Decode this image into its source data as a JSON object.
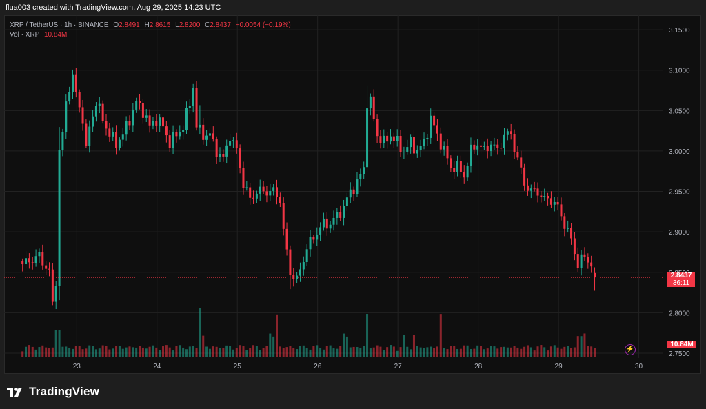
{
  "header": {
    "attribution": "flua003 created with TradingView.com, Aug 29, 2025 14:23 UTC"
  },
  "legend": {
    "symbol": "XRP / TetherUS · 1h · BINANCE",
    "open_label": "O",
    "open": "2.8491",
    "high_label": "H",
    "high": "2.8615",
    "low_label": "L",
    "low": "2.8200",
    "close_label": "C",
    "close": "2.8437",
    "change": "−0.0054 (−0.19%)",
    "volume_label": "Vol · XRP",
    "volume": "10.84M"
  },
  "price_tag": {
    "price": "2.8437",
    "countdown": "36:11"
  },
  "volume_tag": "10.84M",
  "footer": {
    "brand": "TradingView"
  },
  "colors": {
    "up": "#22ab94",
    "down": "#f23645",
    "background": "#0f0f0f",
    "grid": "#222222"
  },
  "chart_data": {
    "type": "candlestick",
    "symbol": "XRP / TetherUS",
    "interval": "1h",
    "exchange": "BINANCE",
    "y_ticks": [
      2.75,
      2.8,
      2.85,
      2.9,
      2.95,
      3.0,
      3.05,
      3.1,
      3.15
    ],
    "y_tick_labels": [
      "2.7500",
      "2.8000",
      "2.8500",
      "2.9000",
      "2.9500",
      "3.0000",
      "3.0500",
      "3.1000",
      "3.1500"
    ],
    "ylim": [
      2.744,
      3.168
    ],
    "x_tick_labels": [
      "23",
      "24",
      "25",
      "26",
      "27",
      "28",
      "29",
      "30"
    ],
    "x_tick_positions": [
      16.2,
      40.2,
      64.2,
      88.2,
      112.2,
      136.2,
      160.2,
      184.2
    ],
    "x_range": [
      -5.5,
      191.5
    ],
    "last_price": 2.8437,
    "close_anchors": [
      [
        0,
        2.86
      ],
      [
        5,
        2.87
      ],
      [
        8,
        2.85
      ],
      [
        9,
        2.81
      ],
      [
        10,
        2.84
      ],
      [
        11,
        3.0
      ],
      [
        12,
        3.02
      ],
      [
        13,
        3.06
      ],
      [
        14,
        3.08
      ],
      [
        15,
        3.09
      ],
      [
        16,
        3.07
      ],
      [
        18,
        3.04
      ],
      [
        19,
        3.0
      ],
      [
        20,
        3.03
      ],
      [
        22,
        3.06
      ],
      [
        24,
        3.04
      ],
      [
        26,
        3.02
      ],
      [
        28,
        3.01
      ],
      [
        30,
        3.02
      ],
      [
        32,
        3.04
      ],
      [
        34,
        3.06
      ],
      [
        36,
        3.05
      ],
      [
        38,
        3.03
      ],
      [
        40,
        3.04
      ],
      [
        42,
        3.03
      ],
      [
        44,
        3.01
      ],
      [
        46,
        3.02
      ],
      [
        48,
        3.03
      ],
      [
        50,
        3.06
      ],
      [
        51,
        3.08
      ],
      [
        52,
        3.03
      ],
      [
        54,
        3.02
      ],
      [
        56,
        3.02
      ],
      [
        58,
        3.0
      ],
      [
        60,
        2.99
      ],
      [
        62,
        3.02
      ],
      [
        64,
        3.0
      ],
      [
        66,
        2.96
      ],
      [
        68,
        2.94
      ],
      [
        70,
        2.95
      ],
      [
        72,
        2.95
      ],
      [
        75,
        2.95
      ],
      [
        77,
        2.94
      ],
      [
        78,
        2.9
      ],
      [
        80,
        2.85
      ],
      [
        82,
        2.84
      ],
      [
        85,
        2.88
      ],
      [
        88,
        2.9
      ],
      [
        90,
        2.91
      ],
      [
        92,
        2.91
      ],
      [
        94,
        2.92
      ],
      [
        96,
        2.93
      ],
      [
        98,
        2.95
      ],
      [
        100,
        2.96
      ],
      [
        102,
        2.98
      ],
      [
        103,
        3.06
      ],
      [
        104,
        3.06
      ],
      [
        106,
        3.02
      ],
      [
        108,
        3.01
      ],
      [
        110,
        3.02
      ],
      [
        112,
        3.01
      ],
      [
        114,
        3.0
      ],
      [
        116,
        3.01
      ],
      [
        118,
        3.0
      ],
      [
        120,
        3.01
      ],
      [
        122,
        3.04
      ],
      [
        124,
        3.02
      ],
      [
        126,
        3.0
      ],
      [
        128,
        2.98
      ],
      [
        130,
        2.98
      ],
      [
        132,
        2.97
      ],
      [
        134,
        3.0
      ],
      [
        136,
        3.01
      ],
      [
        138,
        3.0
      ],
      [
        140,
        3.01
      ],
      [
        142,
        3.0
      ],
      [
        144,
        3.02
      ],
      [
        146,
        3.02
      ],
      [
        148,
        2.99
      ],
      [
        150,
        2.96
      ],
      [
        152,
        2.95
      ],
      [
        154,
        2.95
      ],
      [
        156,
        2.94
      ],
      [
        158,
        2.94
      ],
      [
        160,
        2.93
      ],
      [
        162,
        2.91
      ],
      [
        164,
        2.89
      ],
      [
        166,
        2.86
      ],
      [
        168,
        2.87
      ],
      [
        170,
        2.86
      ],
      [
        171,
        2.84
      ]
    ],
    "volume_unit": "XRP",
    "last_volume": "10.84M",
    "volume_spikes": {
      "10": "high",
      "11": "high",
      "53": "high",
      "54": "medium",
      "74": "medium",
      "75": "medium",
      "76": "high",
      "96": "medium",
      "97": "medium",
      "103": "high",
      "114": "medium",
      "117": "medium",
      "125": "high",
      "166": "medium",
      "167": "medium",
      "168": "medium"
    }
  }
}
